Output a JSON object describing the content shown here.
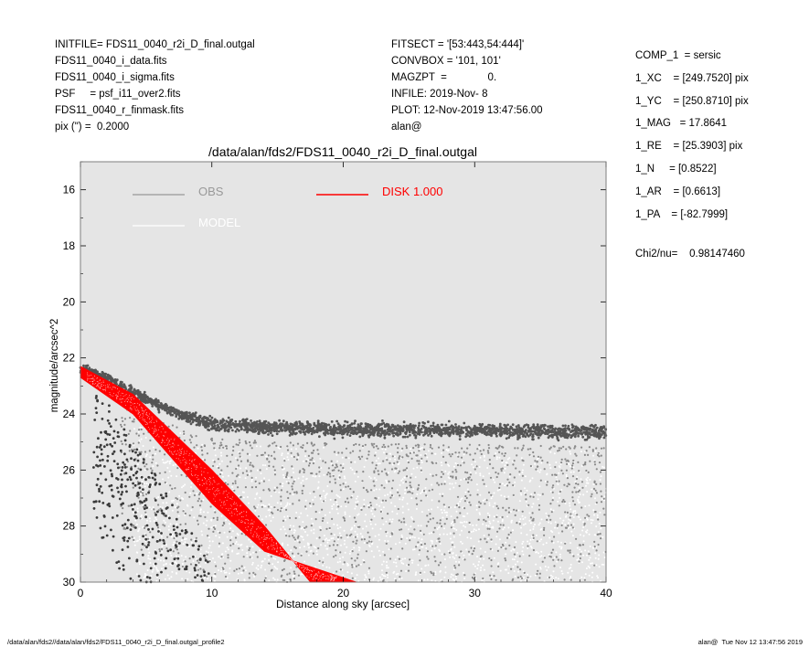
{
  "header_left": [
    "INITFILE= FDS11_0040_r2i_D_final.outgal",
    "FDS11_0040_i_data.fits",
    "FDS11_0040_i_sigma.fits",
    "PSF     = psf_i11_over2.fits",
    "FDS11_0040_r_finmask.fits",
    "pix (\") =  0.2000"
  ],
  "header_mid": [
    "FITSECT = '[53:443,54:444]'",
    "CONVBOX = '101, 101'",
    "MAGZPT  =              0.",
    "INFILE: 2019-Nov- 8",
    "PLOT: 12-Nov-2019 13:47:56.00",
    "alan@"
  ],
  "header_right": [
    "COMP_1  = sersic",
    "1_XC    = [249.7520] pix",
    "1_YC    = [250.8710] pix",
    "1_MAG   = 17.8641",
    "1_RE    = [25.3903] pix",
    "1_N     = [0.8522]",
    "1_AR    = [0.6613]",
    "1_PA    = [-82.7999]"
  ],
  "chi2": {
    "label": "Chi2/nu=",
    "value": "0.98147460"
  },
  "footer": {
    "left": "/data/alan/fds2//data/alan/fds2/FDS11_0040_r2i_D_final.outgal_profile2",
    "right": "alan@  Tue Nov 12 13:47:56 2019"
  },
  "chart_data": {
    "type": "scatter",
    "title": "/data/alan/fds2/FDS11_0040_r2i_D_final.outgal",
    "xlabel": "Distance along sky [arcsec]",
    "ylabel": "magnitude/arcsec^2",
    "xlim": [
      0,
      40
    ],
    "ylim": [
      30,
      15
    ],
    "y_inverted": true,
    "xticks": [
      0,
      10,
      20,
      30,
      40
    ],
    "yticks": [
      16,
      18,
      20,
      22,
      24,
      26,
      28,
      30
    ],
    "background_color": "#e5e5e5",
    "legend": [
      {
        "label": "OBS",
        "color": "#999999"
      },
      {
        "label": "MODEL",
        "color": "#ffffff"
      },
      {
        "label": "DISK  1.000",
        "color": "#ff0000"
      }
    ],
    "series": [
      {
        "name": "OBS",
        "color": "#555555",
        "description_points": [
          [
            0.0,
            22.4
          ],
          [
            2.0,
            22.7
          ],
          [
            4.0,
            23.2
          ],
          [
            6.0,
            23.7
          ],
          [
            8.0,
            24.1
          ],
          [
            10.0,
            24.35
          ],
          [
            15.0,
            24.5
          ],
          [
            20.0,
            24.55
          ],
          [
            30.0,
            24.6
          ],
          [
            40.0,
            24.65
          ]
        ]
      },
      {
        "name": "DISK  1.000",
        "color": "#ff0000",
        "upper_edge": [
          [
            0.0,
            22.3
          ],
          [
            4.0,
            23.3
          ],
          [
            10.0,
            26.0
          ],
          [
            14.0,
            28.0
          ],
          [
            17.5,
            30.0
          ]
        ],
        "lower_edge": [
          [
            0.0,
            22.7
          ],
          [
            4.0,
            24.0
          ],
          [
            10.0,
            27.2
          ],
          [
            14.0,
            28.9
          ],
          [
            21.0,
            30.0
          ]
        ]
      }
    ]
  }
}
